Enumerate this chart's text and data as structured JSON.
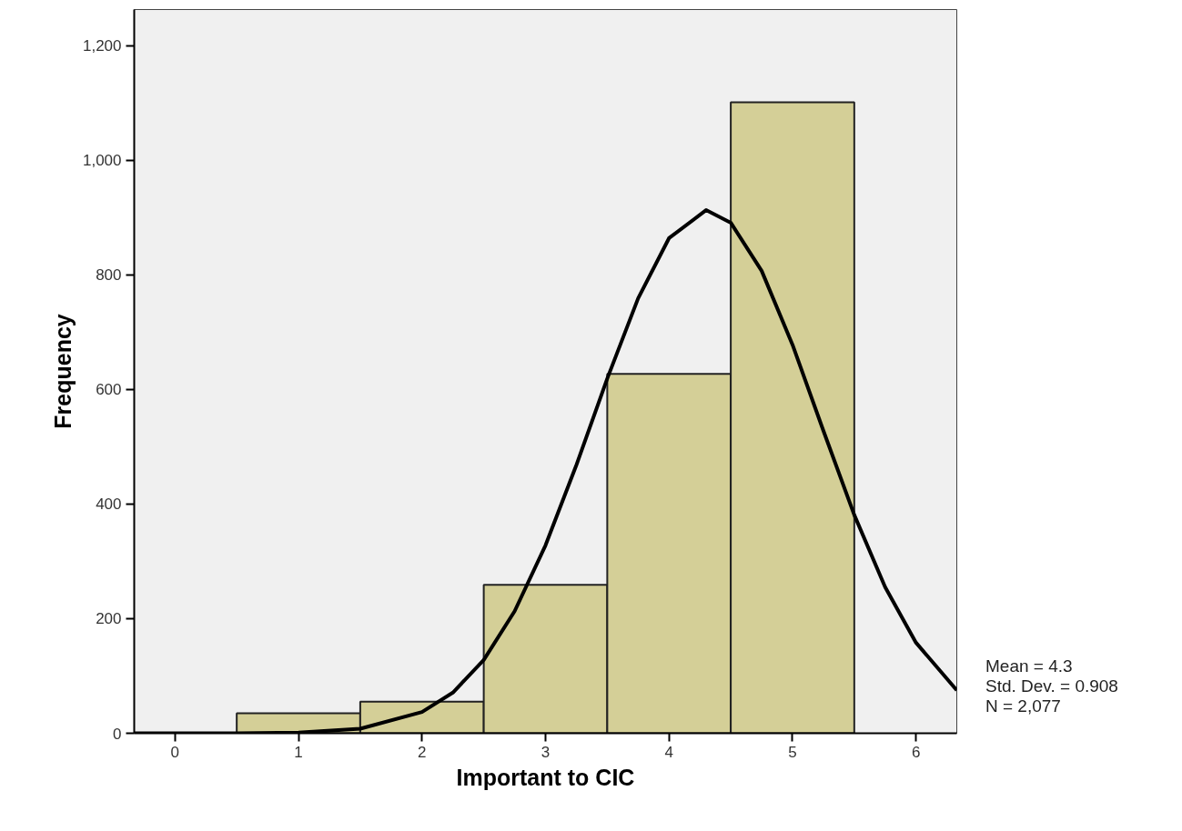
{
  "chart_data": {
    "type": "histogram",
    "xlabel": "Important to CIC",
    "ylabel": "Frequency",
    "bins": [
      0.5,
      1.5,
      2.5,
      3.5,
      4.5,
      5.5
    ],
    "values": [
      35,
      55,
      259,
      627,
      1101
    ],
    "color": "#d4cf97",
    "series": [
      {
        "type": "line",
        "color": "#000000",
        "x": [
          -0.33,
          0,
          0.5,
          1,
          1.5,
          2,
          2.25,
          2.5,
          2.75,
          3,
          3.25,
          3.5,
          3.75,
          4,
          4.3,
          4.5,
          4.75,
          5,
          5.25,
          5.5,
          5.75,
          6,
          6.33
        ],
        "values": [
          0,
          0,
          0,
          1,
          8,
          37,
          71,
          128,
          213,
          328,
          468,
          619,
          759,
          864,
          913,
          891,
          807,
          678,
          528,
          381,
          255,
          158,
          75
        ]
      }
    ],
    "xlim": [
      -0.33,
      6.33
    ],
    "ylim": [
      0,
      1263
    ],
    "xticks": [
      0,
      1,
      2,
      3,
      4,
      5,
      6
    ],
    "yticks": [
      0,
      200,
      400,
      600,
      800,
      {
        "value": 1000,
        "label": "1,000"
      },
      {
        "value": 1200,
        "label": "1,200"
      }
    ],
    "grid": false,
    "line_style": "solid",
    "marker": "none",
    "annotations": [
      "Mean = 4.3",
      "Std. Dev. = 0.908",
      "N = 2,077"
    ]
  }
}
